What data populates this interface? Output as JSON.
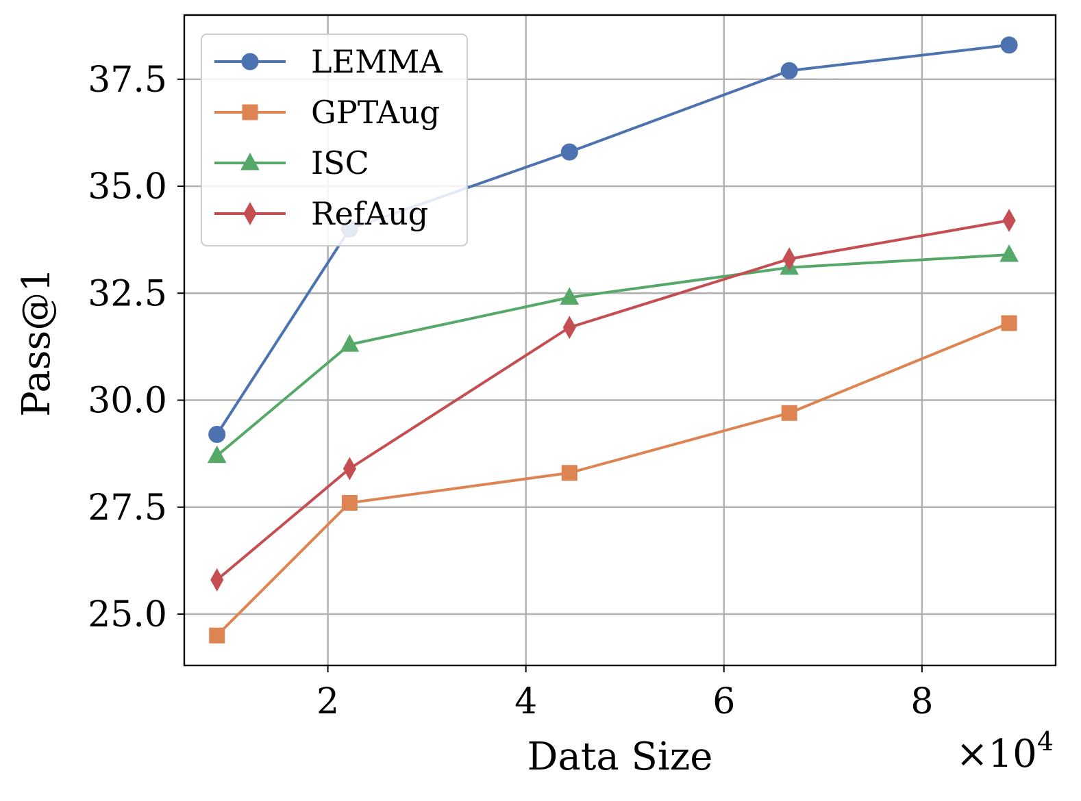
{
  "chart_data": {
    "type": "line",
    "title": "",
    "xlabel": "Data Size",
    "ylabel": "Pass@1",
    "x_offset_label": {
      "base": "×10",
      "exponent": "4"
    },
    "xlim": [
      0.55,
      9.35
    ],
    "ylim": [
      23.8,
      39.0
    ],
    "xticks": [
      2,
      4,
      6,
      8
    ],
    "xtick_labels": [
      "2",
      "4",
      "6",
      "8"
    ],
    "yticks": [
      25.0,
      27.5,
      30.0,
      32.5,
      35.0,
      37.5
    ],
    "ytick_labels": [
      "25.0",
      "27.5",
      "30.0",
      "32.5",
      "35.0",
      "37.5"
    ],
    "grid": true,
    "legend_position": "top-left",
    "x": [
      0.88,
      2.22,
      4.44,
      6.66,
      8.88
    ],
    "series": [
      {
        "name": "LEMMA",
        "marker": "circle",
        "color": "#4c72b0",
        "values": [
          29.2,
          34.0,
          35.8,
          37.7,
          38.3
        ]
      },
      {
        "name": "GPTAug",
        "marker": "square",
        "color": "#dd8452",
        "values": [
          24.5,
          27.6,
          28.3,
          29.7,
          31.8
        ]
      },
      {
        "name": "ISC",
        "marker": "triangle",
        "color": "#55a868",
        "values": [
          28.7,
          31.3,
          32.4,
          33.1,
          33.4
        ]
      },
      {
        "name": "RefAug",
        "marker": "diamond",
        "color": "#c44e52",
        "values": [
          25.8,
          28.4,
          31.7,
          33.3,
          34.2
        ]
      }
    ]
  }
}
